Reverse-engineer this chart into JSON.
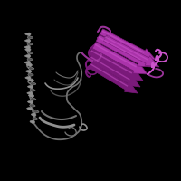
{
  "background_color": "#000000",
  "fig_width": 2.0,
  "fig_height": 2.0,
  "dpi": 100,
  "gray": "#909090",
  "gray_mid": "#707070",
  "gray_dark": "#505050",
  "gray_light": "#b0b0b0",
  "purple": "#aa33aa",
  "purple_dark": "#7a1a7a",
  "purple_light": "#cc55cc",
  "purple_mid": "#993399"
}
